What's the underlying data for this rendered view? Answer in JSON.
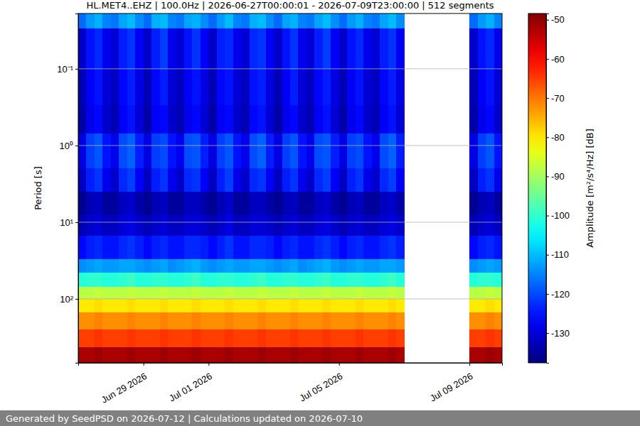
{
  "chart_data": {
    "type": "heatmap",
    "title": "HL.MET4..EHZ | 100.0Hz | 2026-06-27T00:00:01 - 2026-07-09T23:00:00 | 512 segments",
    "y_label": "Period [s]",
    "colorbar_label": "Amplitude [m²/s⁴/Hz] [dB]",
    "footer": "Generated by SeedPSD on 2026-07-12 | Calculations updated on 2026-07-10",
    "log": "y",
    "grid": true,
    "xlim": [
      "2026-06-27T00:00",
      "2026-07-10T00:00"
    ],
    "xticks": [
      {
        "value": "2026-06-29T00:00",
        "label": "Jun 29 2026"
      },
      {
        "value": "2026-07-01T00:00",
        "label": "Jul 01 2026"
      },
      {
        "value": "2026-07-05T00:00",
        "label": "Jul 05 2026"
      },
      {
        "value": "2026-07-09T00:00",
        "label": "Jul 09 2026"
      }
    ],
    "ylim": [
      0.019,
      681
    ],
    "yticks": [
      {
        "value": 0.1,
        "label": "10⁻¹"
      },
      {
        "value": 1,
        "label": "10⁰"
      },
      {
        "value": 10,
        "label": "10¹"
      },
      {
        "value": 100,
        "label": "10²"
      }
    ],
    "clim": [
      -137.6,
      -48.4
    ],
    "colorbar_ticks": [
      -130,
      -120,
      -110,
      -100,
      -90,
      -80,
      -70,
      -60,
      -50
    ],
    "x_edges": [
      "2026-06-27T00:00",
      "2026-06-27T06:00",
      "2026-06-27T12:00",
      "2026-06-27T18:00",
      "2026-06-28T00:00",
      "2026-06-28T06:00",
      "2026-06-28T12:00",
      "2026-06-28T18:00",
      "2026-06-29T00:00",
      "2026-06-29T06:00",
      "2026-06-29T12:00",
      "2026-06-29T18:00",
      "2026-06-30T00:00",
      "2026-06-30T06:00",
      "2026-06-30T12:00",
      "2026-06-30T18:00",
      "2026-07-01T00:00",
      "2026-07-01T06:00",
      "2026-07-01T12:00",
      "2026-07-01T18:00",
      "2026-07-02T00:00",
      "2026-07-02T06:00",
      "2026-07-02T12:00",
      "2026-07-02T18:00",
      "2026-07-03T00:00",
      "2026-07-03T06:00",
      "2026-07-03T12:00",
      "2026-07-03T18:00",
      "2026-07-04T00:00",
      "2026-07-04T06:00",
      "2026-07-04T12:00",
      "2026-07-04T18:00",
      "2026-07-05T00:00",
      "2026-07-05T06:00",
      "2026-07-05T12:00",
      "2026-07-05T18:00",
      "2026-07-06T00:00",
      "2026-07-06T06:00",
      "2026-07-06T12:00",
      "2026-07-06T18:00",
      "2026-07-07T00:00",
      "2026-07-07T06:00",
      "2026-07-07T12:00",
      "2026-07-07T18:00",
      "2026-07-08T00:00",
      "2026-07-08T06:00",
      "2026-07-08T12:00",
      "2026-07-08T18:00",
      "2026-07-09T00:00",
      "2026-07-09T06:00",
      "2026-07-09T12:00",
      "2026-07-09T18:00",
      "2026-07-10T00:00"
    ],
    "y_edges": [
      0.019,
      0.03,
      0.1,
      0.3,
      0.7,
      2,
      4,
      8,
      15,
      30,
      45,
      70,
      100,
      150,
      250,
      430,
      681
    ],
    "z": [
      [
        -117,
        -113,
        -111,
        -115,
        -116,
        -112,
        -110,
        -114,
        -117,
        -111,
        -110,
        -115,
        -116,
        -112,
        -111,
        -114,
        -117,
        -113,
        -110,
        -115,
        -116,
        -111,
        -110,
        -114,
        -117,
        -112,
        -111,
        -115,
        -116,
        -112,
        -110,
        -114,
        -117,
        -113,
        -111,
        -115,
        -116,
        -112,
        -110,
        -114,
        null,
        null,
        null,
        null,
        null,
        null,
        null,
        null,
        -117,
        -113,
        -111,
        -115
      ],
      [
        -131,
        -125,
        -123,
        -128,
        -130,
        -124,
        -122,
        -127,
        -131,
        -124,
        -121,
        -128,
        -130,
        -125,
        -122,
        -127,
        -131,
        -124,
        -123,
        -128,
        -130,
        -123,
        -122,
        -127,
        -131,
        -125,
        -122,
        -128,
        -130,
        -124,
        -121,
        -127,
        -131,
        -125,
        -123,
        -128,
        -130,
        -124,
        -122,
        -127,
        null,
        null,
        null,
        null,
        null,
        null,
        null,
        null,
        -131,
        -125,
        -123,
        -128
      ],
      [
        -133,
        -127,
        -125,
        -130,
        -132,
        -126,
        -124,
        -129,
        -133,
        -126,
        -124,
        -130,
        -132,
        -127,
        -125,
        -129,
        -133,
        -126,
        -125,
        -130,
        -132,
        -125,
        -124,
        -129,
        -133,
        -127,
        -124,
        -130,
        -132,
        -126,
        -124,
        -129,
        -133,
        -127,
        -125,
        -130,
        -132,
        -126,
        -124,
        -129,
        null,
        null,
        null,
        null,
        null,
        null,
        null,
        null,
        -133,
        -127,
        -125,
        -130
      ],
      [
        -134,
        -128,
        -126,
        -131,
        -133,
        -127,
        -125,
        -130,
        -134,
        -127,
        -126,
        -131,
        -133,
        -128,
        -126,
        -130,
        -134,
        -127,
        -126,
        -131,
        -133,
        -126,
        -125,
        -130,
        -134,
        -128,
        -126,
        -131,
        -133,
        -127,
        -125,
        -130,
        -134,
        -128,
        -126,
        -131,
        -133,
        -127,
        -125,
        -130,
        null,
        null,
        null,
        null,
        null,
        null,
        null,
        null,
        -134,
        -128,
        -126,
        -131
      ],
      [
        -129,
        -121,
        -119,
        -125,
        -128,
        -120,
        -118,
        -124,
        -129,
        -121,
        -120,
        -125,
        -128,
        -120,
        -119,
        -124,
        -129,
        -121,
        -119,
        -125,
        -128,
        -120,
        -118,
        -124,
        -129,
        -121,
        -119,
        -125,
        -128,
        -120,
        -119,
        -124,
        -129,
        -121,
        -120,
        -125,
        -128,
        -120,
        -118,
        -124,
        null,
        null,
        null,
        null,
        null,
        null,
        null,
        null,
        -129,
        -121,
        -119,
        -125
      ],
      [
        -132,
        -124,
        -122,
        -128,
        -131,
        -123,
        -121,
        -127,
        -132,
        -124,
        -122,
        -128,
        -131,
        -123,
        -122,
        -127,
        -132,
        -124,
        -121,
        -128,
        -131,
        -123,
        -122,
        -127,
        -132,
        -124,
        -122,
        -128,
        -131,
        -123,
        -121,
        -127,
        -132,
        -124,
        -122,
        -128,
        -131,
        -123,
        -121,
        -127,
        null,
        null,
        null,
        null,
        null,
        null,
        null,
        null,
        -132,
        -124,
        -122,
        -128
      ],
      [
        -136,
        -133,
        -132,
        -135,
        -135,
        -132,
        -131,
        -134,
        -136,
        -133,
        -132,
        -135,
        -135,
        -132,
        -132,
        -134,
        -136,
        -133,
        -131,
        -135,
        -135,
        -132,
        -132,
        -134,
        -136,
        -133,
        -132,
        -135,
        -135,
        -132,
        -131,
        -134,
        -136,
        -133,
        -132,
        -135,
        -135,
        -132,
        -131,
        -134,
        null,
        null,
        null,
        null,
        null,
        null,
        null,
        null,
        -136,
        -133,
        -132,
        -135
      ],
      [
        -133,
        -131,
        -130,
        -132,
        -132,
        -130,
        -129,
        -131,
        -133,
        -131,
        -130,
        -132,
        -132,
        -130,
        -130,
        -131,
        -133,
        -131,
        -129,
        -132,
        -132,
        -130,
        -130,
        -131,
        -133,
        -131,
        -130,
        -132,
        -132,
        -130,
        -129,
        -131,
        -133,
        -131,
        -130,
        -132,
        -132,
        -130,
        -129,
        -131,
        null,
        null,
        null,
        null,
        null,
        null,
        null,
        null,
        -133,
        -131,
        -130,
        -132
      ],
      [
        -126,
        -124,
        -123,
        -125,
        -125,
        -123,
        -122,
        -124,
        -126,
        -124,
        -123,
        -125,
        -125,
        -123,
        -123,
        -124,
        -126,
        -124,
        -122,
        -125,
        -125,
        -123,
        -123,
        -124,
        -126,
        -124,
        -123,
        -125,
        -125,
        -123,
        -122,
        -124,
        -126,
        -124,
        -123,
        -125,
        -125,
        -123,
        -122,
        -124,
        null,
        null,
        null,
        null,
        null,
        null,
        null,
        null,
        -126,
        -124,
        -123,
        -125
      ],
      [
        -114,
        -113,
        -112,
        -113,
        -113,
        -112,
        -112,
        -113,
        -114,
        -113,
        -112,
        -114,
        -113,
        -112,
        -111,
        -113,
        -114,
        -113,
        -112,
        -113,
        -113,
        -112,
        -112,
        -113,
        -114,
        -113,
        -112,
        -114,
        -113,
        -112,
        -111,
        -113,
        -114,
        -113,
        -112,
        -113,
        -113,
        -112,
        -112,
        -113,
        null,
        null,
        null,
        null,
        null,
        null,
        null,
        null,
        -114,
        -113,
        -112,
        -113
      ],
      [
        -101,
        -100,
        -100,
        -101,
        -101,
        -100,
        -99,
        -101,
        -101,
        -100,
        -100,
        -101,
        -101,
        -100,
        -99,
        -101,
        -101,
        -100,
        -100,
        -101,
        -101,
        -100,
        -99,
        -101,
        -101,
        -100,
        -100,
        -101,
        -101,
        -100,
        -99,
        -101,
        -101,
        -100,
        -100,
        -101,
        -101,
        -100,
        -99,
        -101,
        null,
        null,
        null,
        null,
        null,
        null,
        null,
        null,
        -101,
        -100,
        -100,
        -101
      ],
      [
        -88,
        -88,
        -87,
        -88,
        -88,
        -88,
        -87,
        -88,
        -88,
        -88,
        -87,
        -88,
        -88,
        -88,
        -87,
        -88,
        -88,
        -88,
        -87,
        -88,
        -88,
        -88,
        -87,
        -88,
        -88,
        -88,
        -87,
        -88,
        -88,
        -88,
        -87,
        -88,
        -88,
        -88,
        -87,
        -88,
        -88,
        -88,
        -87,
        -88,
        null,
        null,
        null,
        null,
        null,
        null,
        null,
        null,
        -88,
        -88,
        -87,
        -88
      ],
      [
        -80,
        -80,
        -79,
        -80,
        -80,
        -80,
        -79,
        -80,
        -80,
        -80,
        -79,
        -80,
        -80,
        -80,
        -79,
        -80,
        -80,
        -80,
        -79,
        -80,
        -80,
        -80,
        -79,
        -80,
        -80,
        -80,
        -79,
        -80,
        -80,
        -80,
        -79,
        -80,
        -80,
        -80,
        -79,
        -80,
        -80,
        -80,
        -79,
        -80,
        null,
        null,
        null,
        null,
        null,
        null,
        null,
        null,
        -80,
        -80,
        -79,
        -80
      ],
      [
        -72,
        -72,
        -71,
        -72,
        -72,
        -72,
        -71,
        -72,
        -72,
        -72,
        -71,
        -72,
        -72,
        -72,
        -71,
        -72,
        -72,
        -72,
        -71,
        -72,
        -72,
        -72,
        -71,
        -72,
        -72,
        -72,
        -71,
        -72,
        -72,
        -72,
        -71,
        -72,
        -72,
        -72,
        -71,
        -72,
        -72,
        -72,
        -71,
        -72,
        null,
        null,
        null,
        null,
        null,
        null,
        null,
        null,
        -72,
        -72,
        -71,
        -72
      ],
      [
        -65,
        -65,
        -64,
        -65,
        -65,
        -65,
        -64,
        -65,
        -65,
        -65,
        -64,
        -65,
        -65,
        -65,
        -64,
        -65,
        -65,
        -65,
        -64,
        -65,
        -65,
        -65,
        -64,
        -65,
        -65,
        -65,
        -64,
        -65,
        -65,
        -65,
        -64,
        -65,
        -65,
        -65,
        -64,
        -65,
        -65,
        -65,
        -64,
        -65,
        null,
        null,
        null,
        null,
        null,
        null,
        null,
        null,
        -65,
        -65,
        -64,
        -65
      ],
      [
        -52,
        -52,
        -51,
        -52,
        -52,
        -52,
        -51,
        -52,
        -52,
        -52,
        -51,
        -52,
        -52,
        -52,
        -51,
        -52,
        -52,
        -52,
        -51,
        -52,
        -52,
        -52,
        -51,
        -52,
        -52,
        -52,
        -51,
        -52,
        -52,
        -52,
        -51,
        -52,
        -52,
        -52,
        -51,
        -52,
        -52,
        -52,
        -51,
        -52,
        null,
        null,
        null,
        null,
        null,
        null,
        null,
        null,
        -52,
        -52,
        -51,
        -52
      ]
    ]
  }
}
